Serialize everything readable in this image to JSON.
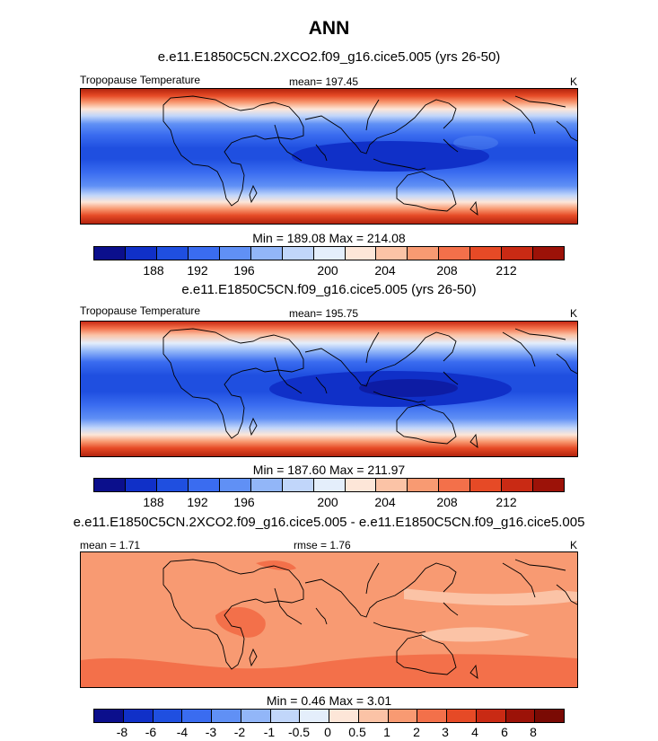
{
  "title": "ANN",
  "panels": [
    {
      "case_title": "e.e11.E1850C5CN.2XCO2.f09_g16.cice5.005 (yrs 26-50)",
      "variable": "Tropopause Temperature",
      "stat_label": "mean= 197.45",
      "stat2_label": "",
      "units": "K",
      "minmax": "Min = 189.08 Max = 214.08",
      "colorbar": {
        "ticks": [
          "188",
          "192",
          "196",
          "200",
          "204",
          "208",
          "212"
        ],
        "colors": [
          "#0b0f8c",
          "#1030c8",
          "#1f4fe0",
          "#3a6cf0",
          "#6090f5",
          "#92b6f8",
          "#c1d6fa",
          "#e4eefb",
          "#fde6d8",
          "#fbc3a6",
          "#f89a72",
          "#f3704a",
          "#e64a26",
          "#c92a14",
          "#9c1208"
        ]
      }
    },
    {
      "case_title": "e.e11.E1850C5CN.f09_g16.cice5.005 (yrs 26-50)",
      "variable": "Tropopause Temperature",
      "stat_label": "mean= 195.75",
      "stat2_label": "",
      "units": "K",
      "minmax": "Min = 187.60 Max = 211.97",
      "colorbar": {
        "ticks": [
          "188",
          "192",
          "196",
          "200",
          "204",
          "208",
          "212"
        ],
        "colors": [
          "#0b0f8c",
          "#1030c8",
          "#1f4fe0",
          "#3a6cf0",
          "#6090f5",
          "#92b6f8",
          "#c1d6fa",
          "#e4eefb",
          "#fde6d8",
          "#fbc3a6",
          "#f89a72",
          "#f3704a",
          "#e64a26",
          "#c92a14",
          "#9c1208"
        ]
      }
    },
    {
      "case_title": "e.e11.E1850C5CN.2XCO2.f09_g16.cice5.005 - e.e11.E1850C5CN.f09_g16.cice5.005",
      "variable": "",
      "stat_label": "mean =   1.71",
      "stat2_label": "rmse =   1.76",
      "units": "K",
      "minmax": "Min =   0.46 Max =   3.01",
      "colorbar": {
        "ticks": [
          "-8",
          "-6",
          "-4",
          "-3",
          "-2",
          "-1",
          "-0.5",
          "0",
          "0.5",
          "1",
          "2",
          "3",
          "4",
          "6",
          "8"
        ],
        "colors": [
          "#0b0f8c",
          "#1030c8",
          "#1f4fe0",
          "#3a6cf0",
          "#6090f5",
          "#92b6f8",
          "#c1d6fa",
          "#e4eefb",
          "#fde6d8",
          "#fbc3a6",
          "#f89a72",
          "#f3704a",
          "#e64a26",
          "#c92a14",
          "#9c1208",
          "#7a0a04"
        ]
      }
    }
  ],
  "chart_data": [
    {
      "type": "heatmap",
      "title": "e.e11.E1850C5CN.2XCO2.f09_g16.cice5.005 (yrs 26-50)",
      "variable": "Tropopause Temperature",
      "units": "K",
      "mean": 197.45,
      "min": 189.08,
      "max": 214.08,
      "levels": [
        186,
        188,
        190,
        192,
        194,
        196,
        198,
        200,
        202,
        204,
        206,
        208,
        210,
        212,
        214
      ]
    },
    {
      "type": "heatmap",
      "title": "e.e11.E1850C5CN.f09_g16.cice5.005 (yrs 26-50)",
      "variable": "Tropopause Temperature",
      "units": "K",
      "mean": 195.75,
      "min": 187.6,
      "max": 211.97,
      "levels": [
        186,
        188,
        190,
        192,
        194,
        196,
        198,
        200,
        202,
        204,
        206,
        208,
        210,
        212,
        214
      ]
    },
    {
      "type": "heatmap",
      "title": "e.e11.E1850C5CN.2XCO2.f09_g16.cice5.005 - e.e11.E1850C5CN.f09_g16.cice5.005",
      "units": "K",
      "mean": 1.71,
      "rmse": 1.76,
      "min": 0.46,
      "max": 3.01,
      "levels": [
        -8,
        -6,
        -4,
        -3,
        -2,
        -1,
        -0.5,
        0,
        0.5,
        1,
        2,
        3,
        4,
        6,
        8
      ]
    }
  ]
}
